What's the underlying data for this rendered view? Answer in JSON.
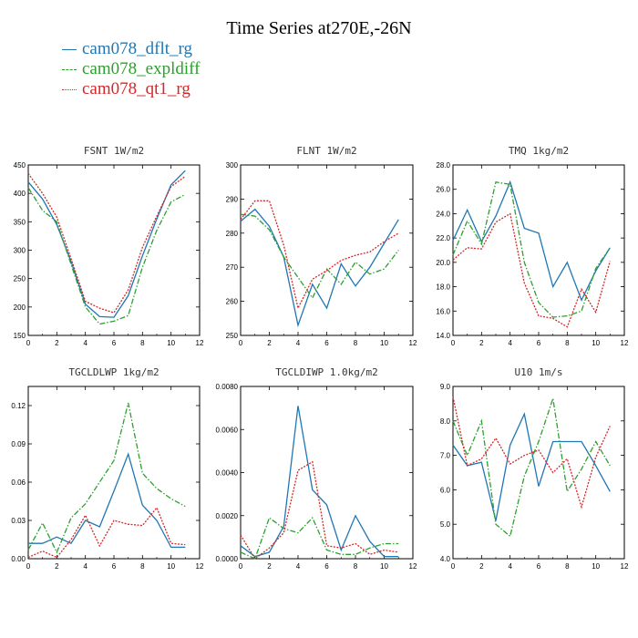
{
  "title": "Time Series at270E,-26N",
  "legend": [
    {
      "label": "cam078_dflt_rg",
      "color": "#1f77b4",
      "dash": "solid"
    },
    {
      "label": "cam078_expldiff",
      "color": "#2ca02c",
      "dash": "dashdot"
    },
    {
      "label": "cam078_qt1_rg",
      "color": "#d62728",
      "dash": "dotted"
    }
  ],
  "chart_data": [
    {
      "type": "line",
      "title": "FSNT   1W/m2",
      "x": [
        0,
        1,
        2,
        3,
        4,
        5,
        6,
        7,
        8,
        9,
        10,
        11
      ],
      "xlim": [
        0,
        12
      ],
      "xticks": [
        "0",
        "2",
        "4",
        "6",
        "8",
        "10",
        "12"
      ],
      "ylim": [
        150,
        450
      ],
      "yticks": [
        "150",
        "200",
        "250",
        "300",
        "350",
        "400",
        "450"
      ],
      "series": [
        {
          "name": "cam078_dflt_rg",
          "values": [
            420,
            390,
            345,
            280,
            205,
            183,
            182,
            220,
            290,
            355,
            415,
            440
          ]
        },
        {
          "name": "cam078_expldiff",
          "values": [
            410,
            370,
            350,
            275,
            200,
            170,
            175,
            185,
            270,
            335,
            385,
            398
          ]
        },
        {
          "name": "cam078_qt1_rg",
          "values": [
            435,
            400,
            358,
            285,
            210,
            198,
            190,
            230,
            305,
            360,
            412,
            430
          ]
        }
      ]
    },
    {
      "type": "line",
      "title": "FLNT   1W/m2",
      "x": [
        0,
        1,
        2,
        3,
        4,
        5,
        6,
        7,
        8,
        9,
        10,
        11
      ],
      "xlim": [
        0,
        12
      ],
      "xticks": [
        "0",
        "2",
        "4",
        "6",
        "8",
        "10",
        "12"
      ],
      "ylim": [
        250,
        300
      ],
      "yticks": [
        "250",
        "260",
        "270",
        "280",
        "290",
        "300"
      ],
      "series": [
        {
          "name": "cam078_dflt_rg",
          "values": [
            283.5,
            287,
            282,
            273,
            253,
            265,
            258,
            271,
            264.5,
            270,
            277,
            284
          ]
        },
        {
          "name": "cam078_expldiff",
          "values": [
            285.5,
            285,
            281,
            273,
            267,
            261,
            269.5,
            265,
            271.5,
            268,
            269.5,
            275
          ]
        },
        {
          "name": "cam078_qt1_rg",
          "values": [
            284,
            289.5,
            289.5,
            276.5,
            258,
            266.5,
            269,
            272,
            273.5,
            274.5,
            277.5,
            280
          ]
        }
      ]
    },
    {
      "type": "line",
      "title": "TMQ   1kg/m2",
      "x": [
        0,
        1,
        2,
        3,
        4,
        5,
        6,
        7,
        8,
        9,
        10,
        11
      ],
      "xlim": [
        0,
        12
      ],
      "xticks": [
        "0",
        "2",
        "4",
        "6",
        "8",
        "10",
        "12"
      ],
      "ylim": [
        14,
        28
      ],
      "yticks": [
        "14.0",
        "16.0",
        "18.0",
        "20.0",
        "22.0",
        "24.0",
        "26.0",
        "28.0"
      ],
      "series": [
        {
          "name": "cam078_dflt_rg",
          "values": [
            21.8,
            24.3,
            21.7,
            23.8,
            26.6,
            22.8,
            22.4,
            18.0,
            20.0,
            16.9,
            19.3,
            21.2
          ]
        },
        {
          "name": "cam078_expldiff",
          "values": [
            20.6,
            23.4,
            21.5,
            26.6,
            26.4,
            20.0,
            16.7,
            15.5,
            15.6,
            16.0,
            19.5,
            21.2
          ]
        },
        {
          "name": "cam078_qt1_rg",
          "values": [
            20.2,
            21.2,
            21.1,
            23.3,
            24.0,
            18.3,
            15.6,
            15.4,
            14.7,
            17.8,
            15.9,
            20.1
          ]
        }
      ]
    },
    {
      "type": "line",
      "title": "TGCLDLWP   1kg/m2",
      "x": [
        0,
        1,
        2,
        3,
        4,
        5,
        6,
        7,
        8,
        9,
        10,
        11
      ],
      "xlim": [
        0,
        12
      ],
      "xticks": [
        "0",
        "2",
        "4",
        "6",
        "8",
        "10",
        "12"
      ],
      "ylim": [
        0,
        0.135
      ],
      "yticks": [
        "0.00",
        "0.03",
        "0.06",
        "0.09",
        "0.12"
      ],
      "ytick_values": [
        0,
        0.03,
        0.06,
        0.09,
        0.12
      ],
      "series": [
        {
          "name": "cam078_dflt_rg",
          "values": [
            0.012,
            0.012,
            0.017,
            0.012,
            0.03,
            0.025,
            0.053,
            0.082,
            0.042,
            0.03,
            0.009,
            0.009
          ]
        },
        {
          "name": "cam078_expldiff",
          "values": [
            0.007,
            0.028,
            0.005,
            0.032,
            0.043,
            0.06,
            0.077,
            0.122,
            0.067,
            0.055,
            0.047,
            0.041
          ]
        },
        {
          "name": "cam078_qt1_rg",
          "values": [
            0.001,
            0.006,
            0.001,
            0.015,
            0.034,
            0.01,
            0.03,
            0.027,
            0.026,
            0.04,
            0.012,
            0.011
          ]
        }
      ]
    },
    {
      "type": "line",
      "title": "TGCLDIWP   1.0kg/m2",
      "x": [
        0,
        1,
        2,
        3,
        4,
        5,
        6,
        7,
        8,
        9,
        10,
        11
      ],
      "xlim": [
        0,
        12
      ],
      "xticks": [
        "0",
        "2",
        "4",
        "6",
        "8",
        "10",
        "12"
      ],
      "ylim": [
        0,
        0.008
      ],
      "yticks": [
        "0.0000",
        "0.0020",
        "0.0040",
        "0.0060",
        "0.0080"
      ],
      "ytick_values": [
        0,
        0.002,
        0.004,
        0.006,
        0.008
      ],
      "series": [
        {
          "name": "cam078_dflt_rg",
          "values": [
            0.0006,
            0.0001,
            0.0003,
            0.0015,
            0.0071,
            0.0032,
            0.0025,
            0.0004,
            0.002,
            0.0008,
            0.0001,
            0.0001
          ]
        },
        {
          "name": "cam078_expldiff",
          "values": [
            0.0003,
            0.0,
            0.0019,
            0.0014,
            0.0012,
            0.0019,
            0.0004,
            0.0002,
            0.0002,
            0.0005,
            0.0007,
            0.0007
          ]
        },
        {
          "name": "cam078_qt1_rg",
          "values": [
            0.0011,
            0.0,
            0.0005,
            0.0012,
            0.0041,
            0.0045,
            0.0006,
            0.0005,
            0.0007,
            0.0002,
            0.0004,
            0.0003
          ]
        }
      ]
    },
    {
      "type": "line",
      "title": "U10   1m/s",
      "x": [
        0,
        1,
        2,
        3,
        4,
        5,
        6,
        7,
        8,
        9,
        10,
        11
      ],
      "xlim": [
        0,
        12
      ],
      "xticks": [
        "0",
        "2",
        "4",
        "6",
        "8",
        "10",
        "12"
      ],
      "ylim": [
        4,
        9
      ],
      "yticks": [
        "4.0",
        "5.0",
        "6.0",
        "7.0",
        "8.0",
        "9.0"
      ],
      "series": [
        {
          "name": "cam078_dflt_rg",
          "values": [
            7.3,
            6.7,
            6.8,
            5.1,
            7.3,
            8.2,
            6.1,
            7.4,
            7.4,
            7.4,
            6.7,
            5.95
          ]
        },
        {
          "name": "cam078_expldiff",
          "values": [
            8.0,
            7.0,
            8.0,
            5.0,
            4.65,
            6.4,
            7.4,
            8.65,
            5.95,
            6.6,
            7.4,
            6.7
          ]
        },
        {
          "name": "cam078_qt1_rg",
          "values": [
            8.7,
            6.7,
            6.9,
            7.5,
            6.75,
            7.0,
            7.15,
            6.5,
            6.9,
            5.5,
            6.95,
            7.85
          ]
        }
      ]
    }
  ]
}
